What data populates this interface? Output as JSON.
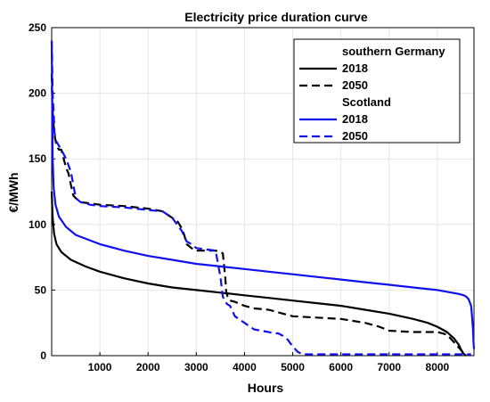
{
  "chart_data": {
    "type": "line",
    "title": "Electricity price duration curve",
    "xlabel": "Hours",
    "ylabel": "€/MWh",
    "xlim": [
      0,
      8760
    ],
    "ylim": [
      0,
      250
    ],
    "xticks": [
      1000,
      2000,
      3000,
      4000,
      5000,
      6000,
      7000,
      8000
    ],
    "yticks": [
      0,
      50,
      100,
      150,
      200,
      250
    ],
    "grid": true,
    "legend_position": "top-right",
    "legend": [
      {
        "type": "header",
        "label": "southern Germany"
      },
      {
        "type": "entry",
        "label": "2018",
        "series": 0
      },
      {
        "type": "entry",
        "label": "2050",
        "series": 1
      },
      {
        "type": "header",
        "label": "Scotland"
      },
      {
        "type": "entry",
        "label": "2018",
        "series": 2
      },
      {
        "type": "entry",
        "label": "2050",
        "series": 3
      }
    ],
    "series": [
      {
        "name": "2018",
        "group": "southern Germany",
        "color": "#000000",
        "dash": "solid",
        "x": [
          0,
          20,
          50,
          100,
          200,
          400,
          700,
          1000,
          1500,
          2000,
          2500,
          3000,
          3500,
          4000,
          4500,
          5000,
          5500,
          6000,
          6500,
          7000,
          7500,
          7800,
          8000,
          8200,
          8350,
          8450,
          8500,
          8530,
          8560,
          8600
        ],
        "y": [
          125,
          105,
          93,
          85,
          79,
          73,
          68,
          64,
          59,
          55,
          52,
          50,
          48,
          46,
          44,
          42,
          40,
          38,
          35,
          32,
          28,
          25,
          22,
          18,
          13,
          8,
          4,
          2,
          1,
          0
        ]
      },
      {
        "name": "2050",
        "group": "southern Germany",
        "color": "#000000",
        "dash": "dashed",
        "x": [
          0,
          10,
          30,
          60,
          100,
          150,
          200,
          250,
          300,
          350,
          400,
          450,
          500,
          600,
          800,
          1000,
          1500,
          2000,
          2300,
          2500,
          2600,
          2700,
          2750,
          2800,
          2900,
          3000,
          3200,
          3400,
          3500,
          3550,
          3600,
          3620,
          3650,
          3700,
          3800,
          4000,
          4200,
          4500,
          5000,
          5500,
          6000,
          6500,
          6800,
          7000,
          7500,
          8000,
          8200,
          8300,
          8400,
          8500,
          8550,
          8600
        ],
        "y": [
          215,
          195,
          180,
          168,
          160,
          157,
          157,
          150,
          143,
          139,
          130,
          122,
          120,
          117,
          116,
          115,
          114,
          112,
          110,
          105,
          103,
          97,
          92,
          85,
          82,
          80,
          80,
          80,
          79,
          78,
          60,
          49,
          45,
          42,
          41,
          38,
          36,
          35,
          30,
          29,
          28,
          25,
          22,
          19,
          18,
          18,
          16,
          12,
          8,
          4,
          2,
          1
        ]
      },
      {
        "name": "2018",
        "group": "Scotland",
        "color": "#1010ee",
        "dash": "solid",
        "x": [
          0,
          10,
          20,
          40,
          80,
          150,
          300,
          500,
          1000,
          1500,
          2000,
          2500,
          3000,
          3500,
          4000,
          4500,
          5000,
          5500,
          6000,
          6500,
          7000,
          7500,
          8000,
          8300,
          8450,
          8550,
          8600,
          8650,
          8700,
          8720,
          8740,
          8750,
          8760
        ],
        "y": [
          240,
          200,
          150,
          128,
          115,
          106,
          98,
          92,
          85,
          80,
          76,
          73,
          70,
          68,
          66,
          64,
          62,
          60,
          58,
          56,
          54,
          52,
          50,
          48,
          47,
          46,
          45,
          43,
          38,
          30,
          20,
          10,
          5
        ]
      },
      {
        "name": "2050",
        "group": "Scotland",
        "color": "#1010ee",
        "dash": "dashed",
        "x": [
          0,
          10,
          20,
          40,
          60,
          80,
          100,
          150,
          200,
          300,
          400,
          500,
          600,
          800,
          1000,
          1500,
          2000,
          2300,
          2500,
          2600,
          2700,
          2800,
          2900,
          3000,
          3200,
          3400,
          3450,
          3500,
          3550,
          3600,
          3650,
          3700,
          3800,
          4000,
          4200,
          4500,
          4600,
          4700,
          4800,
          4900,
          5000,
          5100,
          5200,
          5500,
          6000,
          7000,
          8000,
          8500,
          8700
        ],
        "y": [
          240,
          225,
          200,
          185,
          170,
          165,
          163,
          160,
          157,
          150,
          140,
          120,
          117,
          115,
          114,
          113,
          111,
          110,
          105,
          100,
          95,
          87,
          85,
          82,
          81,
          80,
          70,
          60,
          45,
          41,
          39,
          38,
          30,
          25,
          20,
          18,
          17,
          17,
          15,
          12,
          7,
          3,
          1,
          1,
          1,
          1,
          1,
          1,
          1
        ]
      }
    ]
  }
}
